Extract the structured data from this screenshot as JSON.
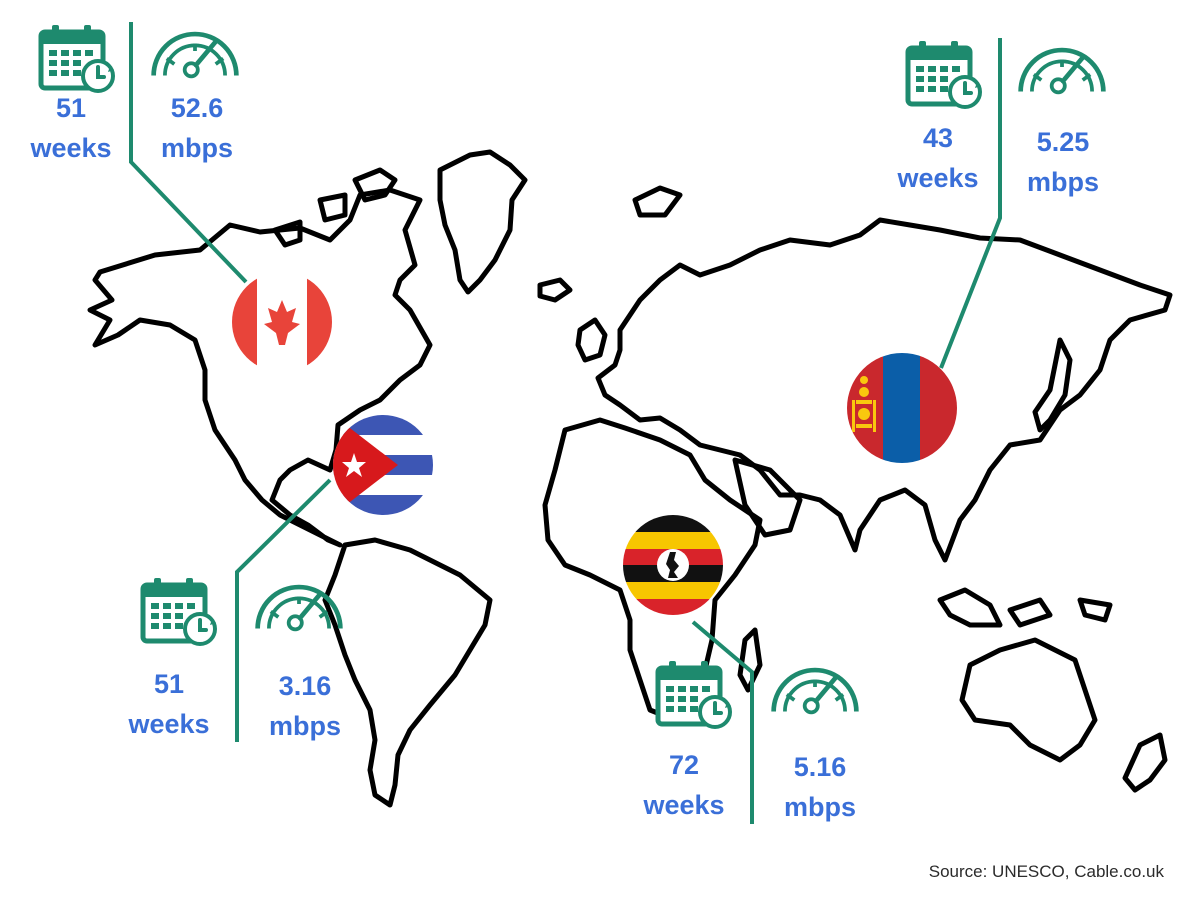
{
  "colors": {
    "accent": "#1e8a6e",
    "value_text": "#3a6fd8",
    "land_stroke": "#000000"
  },
  "icons": [
    "calendar-clock-icon",
    "speedometer-icon"
  ],
  "callouts": [
    {
      "country": "Canada",
      "flag": "canada-flag",
      "weeks_value": "51",
      "weeks_unit": "weeks",
      "speed_value": "52.6",
      "speed_unit": "mbps"
    },
    {
      "country": "Mongolia",
      "flag": "mongolia-flag",
      "weeks_value": "43",
      "weeks_unit": "weeks",
      "speed_value": "5.25",
      "speed_unit": "mbps"
    },
    {
      "country": "Cuba",
      "flag": "cuba-flag",
      "weeks_value": "51",
      "weeks_unit": "weeks",
      "speed_value": "3.16",
      "speed_unit": "mbps"
    },
    {
      "country": "Uganda",
      "flag": "uganda-flag",
      "weeks_value": "72",
      "weeks_unit": "weeks",
      "speed_value": "5.16",
      "speed_unit": "mbps"
    }
  ],
  "source": "Source: UNESCO, Cable.co.uk"
}
